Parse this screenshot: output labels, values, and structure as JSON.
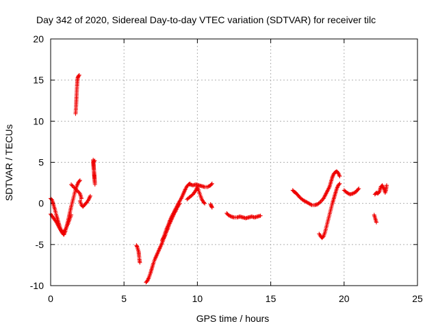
{
  "chart_data": {
    "type": "scatter",
    "title": "Day 342 of 2020, Sidereal Day-to-day VTEC variation (SDTVAR) for receiver tilc",
    "xlabel": "GPS time / hours",
    "ylabel": "SDTVAR / TECUs",
    "xlim": [
      0,
      25
    ],
    "ylim": [
      -10,
      20
    ],
    "xticks": [
      0,
      5,
      10,
      15,
      20,
      25
    ],
    "yticks": [
      -10,
      -5,
      0,
      5,
      10,
      15,
      20
    ],
    "grid": true,
    "marker": "+",
    "color": "#ee0000",
    "series": [
      {
        "name": "SDTVAR",
        "segments": [
          [
            [
              0.0,
              0.6
            ],
            [
              0.1,
              0.4
            ],
            [
              0.2,
              -0.2
            ],
            [
              0.3,
              -0.8
            ],
            [
              0.4,
              -1.5
            ],
            [
              0.5,
              -2.1
            ],
            [
              0.6,
              -2.7
            ],
            [
              0.7,
              -3.2
            ],
            [
              0.8,
              -3.6
            ],
            [
              0.9,
              -3.8
            ]
          ],
          [
            [
              0.9,
              -3.8
            ],
            [
              1.0,
              -3.4
            ],
            [
              1.1,
              -2.7
            ],
            [
              1.2,
              -2.0
            ],
            [
              1.3,
              -1.2
            ],
            [
              1.4,
              -0.4
            ],
            [
              1.5,
              0.3
            ],
            [
              1.6,
              1.0
            ],
            [
              1.7,
              1.7
            ],
            [
              1.8,
              2.2
            ],
            [
              1.9,
              2.6
            ],
            [
              2.0,
              2.8
            ]
          ],
          [
            [
              0.0,
              -1.3
            ],
            [
              0.2,
              -1.8
            ],
            [
              0.4,
              -2.3
            ],
            [
              0.6,
              -3.0
            ],
            [
              0.8,
              -3.6
            ],
            [
              1.0,
              -3.2
            ],
            [
              1.2,
              -2.4
            ],
            [
              1.4,
              -1.4
            ]
          ],
          [
            [
              1.7,
              10.9
            ],
            [
              1.72,
              11.4
            ],
            [
              1.74,
              12.1
            ],
            [
              1.76,
              12.9
            ],
            [
              1.78,
              13.6
            ],
            [
              1.8,
              14.3
            ],
            [
              1.82,
              14.9
            ],
            [
              1.85,
              15.3
            ],
            [
              1.9,
              15.5
            ],
            [
              1.95,
              15.6
            ]
          ],
          [
            [
              2.0,
              0.3
            ],
            [
              2.1,
              -0.2
            ],
            [
              2.2,
              -0.4
            ],
            [
              2.3,
              -0.2
            ],
            [
              2.4,
              0.0
            ],
            [
              2.5,
              0.2
            ],
            [
              2.6,
              0.5
            ],
            [
              2.7,
              0.9
            ]
          ],
          [
            [
              1.4,
              2.3
            ],
            [
              2.0,
              1.2
            ],
            [
              2.1,
              0.6
            ]
          ],
          [
            [
              2.9,
              5.3
            ],
            [
              2.92,
              4.9
            ],
            [
              2.94,
              4.4
            ],
            [
              2.96,
              3.9
            ],
            [
              2.98,
              3.3
            ],
            [
              3.0,
              2.8
            ],
            [
              3.02,
              2.3
            ],
            [
              2.9,
              5.0
            ],
            [
              3.0,
              5.2
            ]
          ],
          [
            [
              5.85,
              -5.1
            ],
            [
              5.9,
              -5.3
            ],
            [
              5.95,
              -5.6
            ],
            [
              6.0,
              -5.9
            ],
            [
              6.02,
              -6.3
            ],
            [
              6.05,
              -6.8
            ],
            [
              6.08,
              -7.2
            ]
          ],
          [
            [
              6.5,
              -9.6
            ],
            [
              6.6,
              -9.4
            ],
            [
              6.7,
              -9.0
            ],
            [
              6.8,
              -8.5
            ],
            [
              6.9,
              -7.9
            ],
            [
              7.0,
              -7.3
            ],
            [
              7.1,
              -6.8
            ],
            [
              7.2,
              -6.4
            ],
            [
              7.3,
              -6.0
            ],
            [
              7.4,
              -5.6
            ],
            [
              7.5,
              -5.2
            ],
            [
              7.6,
              -4.8
            ],
            [
              7.7,
              -4.3
            ],
            [
              7.8,
              -3.9
            ],
            [
              7.9,
              -3.4
            ],
            [
              8.0,
              -3.0
            ],
            [
              8.1,
              -2.5
            ],
            [
              8.2,
              -2.1
            ],
            [
              8.3,
              -1.7
            ],
            [
              8.4,
              -1.3
            ],
            [
              8.5,
              -1.0
            ],
            [
              8.6,
              -0.6
            ],
            [
              8.7,
              -0.3
            ],
            [
              8.8,
              0.0
            ]
          ],
          [
            [
              7.6,
              -4.5
            ],
            [
              7.7,
              -4.1
            ],
            [
              7.8,
              -3.6
            ],
            [
              7.9,
              -3.1
            ],
            [
              8.0,
              -2.7
            ],
            [
              8.1,
              -2.2
            ],
            [
              8.2,
              -1.8
            ],
            [
              8.3,
              -1.4
            ],
            [
              8.4,
              -1.1
            ],
            [
              8.5,
              -0.7
            ],
            [
              8.6,
              -0.4
            ],
            [
              8.7,
              0.0
            ],
            [
              8.8,
              0.3
            ],
            [
              8.9,
              0.6
            ],
            [
              9.0,
              1.0
            ],
            [
              9.1,
              1.4
            ],
            [
              9.2,
              1.8
            ],
            [
              9.3,
              2.1
            ],
            [
              9.4,
              2.3
            ],
            [
              9.5,
              2.4
            ]
          ],
          [
            [
              9.5,
              2.3
            ],
            [
              9.7,
              2.2
            ],
            [
              9.9,
              2.3
            ],
            [
              10.1,
              2.2
            ],
            [
              10.3,
              2.1
            ],
            [
              10.5,
              2.0
            ],
            [
              10.7,
              2.0
            ],
            [
              10.9,
              2.2
            ],
            [
              11.0,
              2.4
            ]
          ],
          [
            [
              9.3,
              0.5
            ],
            [
              9.5,
              0.8
            ],
            [
              9.7,
              1.1
            ],
            [
              9.9,
              1.6
            ],
            [
              10.0,
              2.0
            ],
            [
              10.1,
              1.5
            ],
            [
              10.2,
              1.0
            ],
            [
              10.3,
              0.5
            ],
            [
              10.4,
              0.2
            ],
            [
              10.5,
              0.0
            ]
          ],
          [
            [
              10.9,
              -0.1
            ],
            [
              10.95,
              -0.3
            ],
            [
              11.0,
              -0.5
            ]
          ],
          [
            [
              12.0,
              -1.2
            ],
            [
              12.1,
              -1.4
            ],
            [
              12.3,
              -1.6
            ],
            [
              12.5,
              -1.7
            ],
            [
              12.7,
              -1.7
            ],
            [
              12.9,
              -1.6
            ],
            [
              13.1,
              -1.7
            ],
            [
              13.3,
              -1.8
            ],
            [
              13.5,
              -1.7
            ],
            [
              13.7,
              -1.6
            ],
            [
              13.9,
              -1.7
            ],
            [
              14.1,
              -1.6
            ],
            [
              14.3,
              -1.5
            ]
          ],
          [
            [
              16.5,
              1.6
            ],
            [
              16.6,
              1.4
            ],
            [
              16.7,
              1.3
            ],
            [
              16.8,
              1.1
            ],
            [
              16.9,
              0.9
            ],
            [
              17.0,
              0.7
            ],
            [
              17.2,
              0.4
            ],
            [
              17.4,
              0.2
            ],
            [
              17.6,
              0.0
            ],
            [
              17.8,
              -0.2
            ],
            [
              18.0,
              -0.2
            ],
            [
              18.2,
              -0.1
            ],
            [
              18.4,
              0.2
            ],
            [
              18.6,
              0.6
            ],
            [
              18.8,
              1.3
            ],
            [
              19.0,
              2.0
            ],
            [
              19.1,
              2.6
            ],
            [
              19.2,
              3.2
            ],
            [
              19.3,
              3.6
            ],
            [
              19.4,
              3.8
            ],
            [
              19.5,
              3.9
            ],
            [
              19.6,
              3.7
            ],
            [
              19.7,
              3.3
            ]
          ],
          [
            [
              18.3,
              -3.7
            ],
            [
              18.4,
              -4.0
            ],
            [
              18.5,
              -4.2
            ],
            [
              18.6,
              -4.0
            ],
            [
              18.7,
              -3.5
            ],
            [
              18.8,
              -2.8
            ],
            [
              18.9,
              -2.1
            ],
            [
              19.0,
              -1.4
            ],
            [
              19.1,
              -0.7
            ],
            [
              19.2,
              0.0
            ],
            [
              19.3,
              0.6
            ],
            [
              19.4,
              1.2
            ],
            [
              19.5,
              1.8
            ],
            [
              19.6,
              2.2
            ],
            [
              19.7,
              2.4
            ]
          ],
          [
            [
              20.0,
              1.6
            ],
            [
              20.2,
              1.3
            ],
            [
              20.4,
              1.1
            ],
            [
              20.6,
              1.2
            ],
            [
              20.8,
              1.4
            ],
            [
              20.9,
              1.6
            ],
            [
              21.0,
              1.8
            ]
          ],
          [
            [
              22.05,
              -1.4
            ],
            [
              22.1,
              -1.7
            ],
            [
              22.15,
              -2.0
            ],
            [
              22.2,
              -2.3
            ]
          ],
          [
            [
              22.1,
              1.1
            ],
            [
              22.2,
              1.3
            ],
            [
              22.3,
              1.2
            ],
            [
              22.4,
              1.4
            ],
            [
              22.5,
              2.0
            ],
            [
              22.6,
              2.2
            ],
            [
              22.7,
              1.8
            ],
            [
              22.8,
              1.3
            ],
            [
              22.85,
              1.6
            ],
            [
              22.9,
              2.2
            ]
          ]
        ]
      }
    ]
  }
}
